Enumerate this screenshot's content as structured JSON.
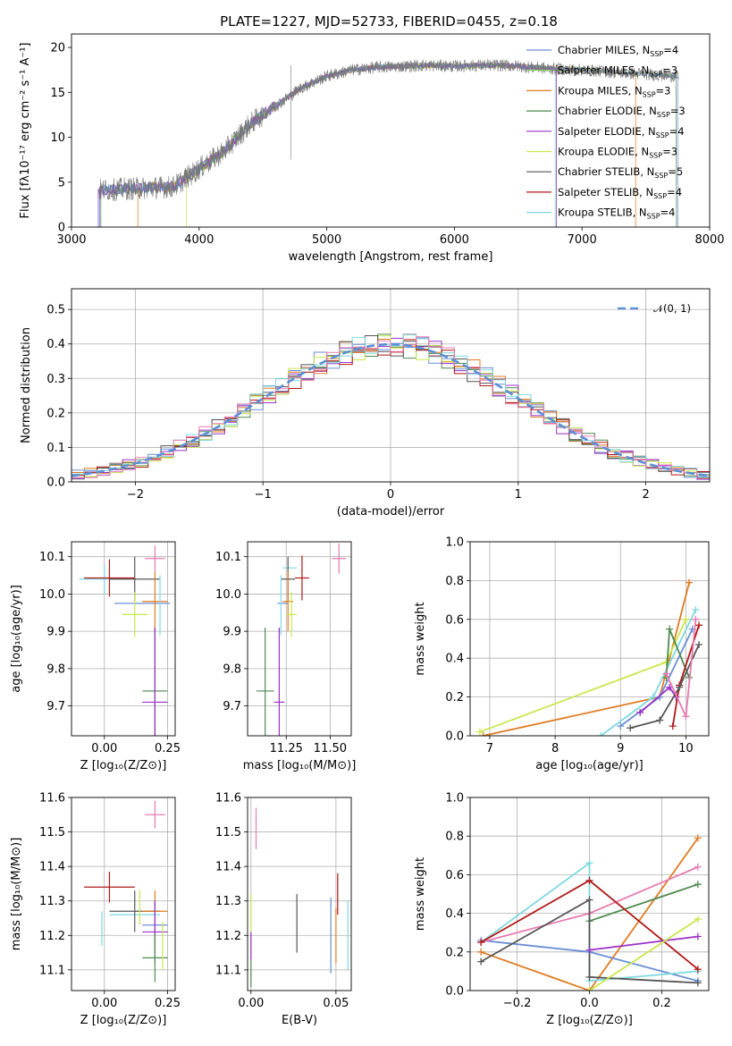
{
  "figure_title": "PLATE=1227, MJD=52733, FIBERID=0455, z=0.18",
  "colors": {
    "Chabrier MILES": "#6a8fd4",
    "Salpeter MILES": "#8fd96a",
    "Kroupa MILES": "#e07b22",
    "Chabrier ELODIE": "#4f8a4f",
    "Salpeter ELODIE": "#9b30c8",
    "Kroupa ELODIE": "#c8e84a",
    "Chabrier STELIB": "#555555",
    "Salpeter STELIB": "#b01818",
    "Kroupa STELIB": "#7fd8e0",
    "extra_pink": "#e87ab0"
  },
  "chart_data": [
    {
      "id": "spectrum",
      "type": "line",
      "xlabel": "wavelength [Angstrom, rest frame]",
      "ylabel": "Flux [fλ10⁻¹⁷ erg cm⁻² s⁻¹ A⁻¹]",
      "xlim": [
        3000,
        8000
      ],
      "ylim": [
        0,
        21.5
      ],
      "xticks": [
        "3000",
        "4000",
        "5000",
        "6000",
        "7000",
        "8000"
      ],
      "yticks": [
        "0",
        "5",
        "10",
        "15",
        "20"
      ],
      "legend": [
        {
          "label": "Chabrier MILES, N",
          "sub": "SSP",
          "tail": "=4"
        },
        {
          "label": "Salpeter MILES, N",
          "sub": "SSP",
          "tail": "=3"
        },
        {
          "label": "Kroupa MILES, N",
          "sub": "SSP",
          "tail": "=3"
        },
        {
          "label": "Chabrier ELODIE, N",
          "sub": "SSP",
          "tail": "=3"
        },
        {
          "label": "Salpeter ELODIE, N",
          "sub": "SSP",
          "tail": "=4"
        },
        {
          "label": "Kroupa ELODIE, N",
          "sub": "SSP",
          "tail": "=3"
        },
        {
          "label": "Chabrier STELIB, N",
          "sub": "SSP",
          "tail": "=5"
        },
        {
          "label": "Salpeter STELIB, N",
          "sub": "SSP",
          "tail": "=4"
        },
        {
          "label": "Kroupa STELIB, N",
          "sub": "SSP",
          "tail": "=4"
        }
      ],
      "continuum": [
        [
          3200,
          4.1
        ],
        [
          3500,
          4.3
        ],
        [
          3800,
          4.5
        ],
        [
          4000,
          6.5
        ],
        [
          4200,
          8.5
        ],
        [
          4400,
          11.5
        ],
        [
          4600,
          13.5
        ],
        [
          4800,
          15.5
        ],
        [
          5000,
          16.8
        ],
        [
          5200,
          17.5
        ],
        [
          5400,
          17.8
        ],
        [
          5600,
          17.9
        ],
        [
          5800,
          18.0
        ],
        [
          6000,
          17.9
        ],
        [
          6200,
          18.0
        ],
        [
          6400,
          18.0
        ],
        [
          6600,
          17.8
        ],
        [
          6800,
          17.6
        ],
        [
          7000,
          17.5
        ],
        [
          7200,
          17.3
        ],
        [
          7400,
          17.1
        ],
        [
          7750,
          16.8
        ]
      ],
      "model_ranges": [
        [
          3220,
          6790
        ],
        [
          3520,
          7420
        ],
        [
          3900,
          6800
        ],
        [
          3230,
          7740
        ],
        [
          3210,
          6800
        ],
        [
          3220,
          7750
        ]
      ]
    },
    {
      "id": "residual_hist",
      "type": "line",
      "xlabel": "(data-model)/error",
      "ylabel": "Normed distribution",
      "xlim": [
        -2.5,
        2.5
      ],
      "ylim": [
        0,
        0.56
      ],
      "xticks": [
        "-2",
        "-1",
        "0",
        "1",
        "2"
      ],
      "yticks": [
        "0.0",
        "0.1",
        "0.2",
        "0.3",
        "0.4",
        "0.5"
      ],
      "legend": "𝒩(0, 1)",
      "gaussian": {
        "mean": 0,
        "sigma": 1
      }
    },
    {
      "id": "age_vs_Z",
      "type": "scatter",
      "xlabel": "Z [log₁₀(Z/Z⊙)]",
      "ylabel": "age  [log₁₀(age/yr)]",
      "xlim": [
        -0.13,
        0.28
      ],
      "ylim": [
        9.62,
        10.14
      ],
      "xticks": [
        0.0,
        0.25
      ],
      "xtick_labels": [
        "0.00",
        "0.25"
      ],
      "yticks": [
        9.7,
        9.8,
        9.9,
        10.0,
        10.1
      ],
      "ytick_labels": [
        "9.7",
        "9.8",
        "9.9",
        "10.0",
        "10.1"
      ],
      "points": [
        {
          "x": 0.15,
          "y": 9.975,
          "ex": 0.11,
          "ey": 0.0,
          "c": "Chabrier MILES"
        },
        {
          "x": 0.0,
          "y": 10.04,
          "ex": 0.1,
          "ey": 0.04,
          "c": "Kroupa STELIB"
        },
        {
          "x": 0.2,
          "y": 10.095,
          "ex": 0.04,
          "ey": 0.035,
          "c": "extra_pink"
        },
        {
          "x": 0.12,
          "y": 10.04,
          "ex": 0.1,
          "ey": 0.06,
          "c": "Chabrier STELIB"
        },
        {
          "x": 0.02,
          "y": 10.043,
          "ex": 0.1,
          "ey": 0.05,
          "c": "Salpeter STELIB"
        },
        {
          "x": 0.2,
          "y": 9.98,
          "ex": 0.05,
          "ey": 0.08,
          "c": "Kroupa MILES"
        },
        {
          "x": 0.12,
          "y": 9.945,
          "ex": 0.05,
          "ey": 0.06,
          "c": "Kroupa ELODIE"
        },
        {
          "x": 0.2,
          "y": 9.74,
          "ex": 0.05,
          "ey": 0.17,
          "c": "Chabrier ELODIE"
        },
        {
          "x": 0.2,
          "y": 9.71,
          "ex": 0.05,
          "ey": 0.2,
          "c": "Salpeter ELODIE"
        },
        {
          "x": 0.22,
          "y": 9.97,
          "ex": 0.0,
          "ey": 0.08,
          "c": "Kroupa STELIB"
        }
      ]
    },
    {
      "id": "age_vs_mass",
      "type": "scatter",
      "xlabel": "mass [log₁₀(M/M⊙)]",
      "ylabel": "",
      "xlim": [
        11.03,
        11.62
      ],
      "ylim": [
        9.62,
        10.14
      ],
      "xticks": [
        11.25,
        11.5
      ],
      "xtick_labels": [
        "11.25",
        "11.50"
      ],
      "yticks": [
        9.7,
        9.8,
        9.9,
        10.0,
        10.1
      ],
      "ytick_labels": [
        "9.7",
        "9.8",
        "9.9",
        "10.0",
        "10.1"
      ],
      "points": [
        {
          "x": 11.23,
          "y": 9.975,
          "ex": 0.03,
          "ey": 0.0,
          "c": "Chabrier MILES"
        },
        {
          "x": 11.27,
          "y": 10.07,
          "ex": 0.04,
          "ey": 0.0,
          "c": "Kroupa STELIB"
        },
        {
          "x": 11.55,
          "y": 10.095,
          "ex": 0.04,
          "ey": 0.04,
          "c": "extra_pink"
        },
        {
          "x": 11.26,
          "y": 10.04,
          "ex": 0.04,
          "ey": 0.06,
          "c": "Chabrier STELIB"
        },
        {
          "x": 11.34,
          "y": 10.043,
          "ex": 0.04,
          "ey": 0.06,
          "c": "Salpeter STELIB"
        },
        {
          "x": 11.26,
          "y": 9.98,
          "ex": 0.03,
          "ey": 0.08,
          "c": "Kroupa MILES"
        },
        {
          "x": 11.28,
          "y": 9.945,
          "ex": 0.03,
          "ey": 0.06,
          "c": "Kroupa ELODIE"
        },
        {
          "x": 11.13,
          "y": 9.74,
          "ex": 0.05,
          "ey": 0.17,
          "c": "Chabrier ELODIE"
        },
        {
          "x": 11.21,
          "y": 9.71,
          "ex": 0.03,
          "ey": 0.2,
          "c": "Salpeter ELODIE"
        },
        {
          "x": 11.22,
          "y": 9.97,
          "ex": 0.0,
          "ey": 0.08,
          "c": "Kroupa STELIB"
        }
      ]
    },
    {
      "id": "weight_vs_age",
      "type": "line",
      "xlabel": "age  [log₁₀(age/yr)]",
      "ylabel": "mass weight",
      "xlim": [
        6.7,
        10.35
      ],
      "ylim": [
        0,
        1.0
      ],
      "xticks": [
        7,
        8,
        9,
        10
      ],
      "xtick_labels": [
        "7",
        "8",
        "9",
        "10"
      ],
      "yticks": [
        0,
        0.2,
        0.4,
        0.6,
        0.8,
        1.0
      ],
      "ytick_labels": [
        "0.0",
        "0.2",
        "0.4",
        "0.6",
        "0.8",
        "1.0"
      ],
      "series": [
        {
          "c": "Kroupa MILES",
          "pts": [
            [
              6.9,
              0.0
            ],
            [
              9.6,
              0.2
            ],
            [
              10.05,
              0.79
            ]
          ]
        },
        {
          "c": "Kroupa ELODIE",
          "pts": [
            [
              6.85,
              0.02
            ],
            [
              9.7,
              0.38
            ],
            [
              10.0,
              0.6
            ]
          ]
        },
        {
          "c": "Chabrier MILES",
          "pts": [
            [
              9.0,
              0.05
            ],
            [
              9.6,
              0.2
            ],
            [
              10.1,
              0.55
            ]
          ]
        },
        {
          "c": "Kroupa STELIB",
          "pts": [
            [
              8.7,
              0.0
            ],
            [
              9.5,
              0.2
            ],
            [
              10.15,
              0.65
            ]
          ]
        },
        {
          "c": "Chabrier ELODIE",
          "pts": [
            [
              9.7,
              0.3
            ],
            [
              9.75,
              0.55
            ],
            [
              10.05,
              0.3
            ]
          ]
        },
        {
          "c": "Salpeter ELODIE",
          "pts": [
            [
              9.3,
              0.12
            ],
            [
              9.75,
              0.25
            ],
            [
              9.85,
              0.2
            ]
          ]
        },
        {
          "c": "Salpeter STELIB",
          "pts": [
            [
              9.8,
              0.05
            ],
            [
              9.9,
              0.26
            ],
            [
              10.2,
              0.57
            ]
          ]
        },
        {
          "c": "Chabrier STELIB",
          "pts": [
            [
              9.15,
              0.04
            ],
            [
              9.6,
              0.08
            ],
            [
              9.9,
              0.25
            ],
            [
              10.2,
              0.47
            ]
          ]
        },
        {
          "c": "extra_pink",
          "pts": [
            [
              9.7,
              0.32
            ],
            [
              10.0,
              0.1
            ],
            [
              10.15,
              0.6
            ]
          ]
        }
      ]
    },
    {
      "id": "mass_vs_Z",
      "type": "scatter",
      "xlabel": "Z [log₁₀(Z/Z⊙)]",
      "ylabel": "mass [log₁₀(M/M⊙)]",
      "xlim": [
        -0.13,
        0.28
      ],
      "ylim": [
        11.04,
        11.6
      ],
      "xticks": [
        0.0,
        0.25
      ],
      "xtick_labels": [
        "0.00",
        "0.25"
      ],
      "yticks": [
        11.1,
        11.2,
        11.3,
        11.4,
        11.5,
        11.6
      ],
      "ytick_labels": [
        "11.1",
        "11.2",
        "11.3",
        "11.4",
        "11.5",
        "11.6"
      ],
      "points": [
        {
          "x": 0.2,
          "y": 11.55,
          "ex": 0.04,
          "ey": 0.04,
          "c": "extra_pink"
        },
        {
          "x": 0.02,
          "y": 11.34,
          "ex": 0.1,
          "ey": 0.045,
          "c": "Salpeter STELIB"
        },
        {
          "x": 0.12,
          "y": 11.26,
          "ex": 0.1,
          "ey": 0.0,
          "c": "Kroupa STELIB"
        },
        {
          "x": 0.12,
          "y": 11.27,
          "ex": 0.1,
          "ey": 0.06,
          "c": "Chabrier STELIB"
        },
        {
          "x": 0.2,
          "y": 11.27,
          "ex": 0.05,
          "ey": 0.06,
          "c": "Kroupa MILES"
        },
        {
          "x": 0.2,
          "y": 11.23,
          "ex": 0.05,
          "ey": 0.07,
          "c": "Chabrier MILES"
        },
        {
          "x": 0.2,
          "y": 11.21,
          "ex": 0.05,
          "ey": 0.09,
          "c": "Salpeter ELODIE"
        },
        {
          "x": 0.2,
          "y": 11.135,
          "ex": 0.05,
          "ey": 0.07,
          "c": "Chabrier ELODIE"
        },
        {
          "x": 0.14,
          "y": 11.28,
          "ex": 0.0,
          "ey": 0.05,
          "c": "Kroupa ELODIE"
        },
        {
          "x": -0.01,
          "y": 11.22,
          "ex": 0.0,
          "ey": 0.05,
          "c": "Kroupa STELIB"
        },
        {
          "x": 0.23,
          "y": 11.17,
          "ex": 0.0,
          "ey": 0.07,
          "c": "Kroupa ELODIE"
        }
      ]
    },
    {
      "id": "mass_vs_EBV",
      "type": "scatter",
      "xlabel": "E(B-V)",
      "ylabel": "",
      "xlim": [
        -0.002,
        0.059
      ],
      "ylim": [
        11.04,
        11.6
      ],
      "xticks": [
        0.0,
        0.05
      ],
      "xtick_labels": [
        "0.00",
        "0.05"
      ],
      "yticks": [
        11.1,
        11.2,
        11.3,
        11.4,
        11.5,
        11.6
      ],
      "ytick_labels": [
        "11.1",
        "11.2",
        "11.3",
        "11.4",
        "11.5",
        "11.6"
      ],
      "points": [
        {
          "x": 0.003,
          "y": 11.51,
          "ex": 0,
          "ey": 0.06,
          "c": "extra_pink"
        },
        {
          "x": 0.0,
          "y": 11.25,
          "ex": 0,
          "ey": 0.07,
          "c": "Kroupa ELODIE"
        },
        {
          "x": 0.0,
          "y": 11.17,
          "ex": 0,
          "ey": 0.04,
          "c": "Salpeter ELODIE"
        },
        {
          "x": 0.0,
          "y": 11.09,
          "ex": 0,
          "ey": 0.04,
          "c": "Chabrier ELODIE"
        },
        {
          "x": 0.027,
          "y": 11.235,
          "ex": 0,
          "ey": 0.085,
          "c": "Chabrier STELIB"
        },
        {
          "x": 0.047,
          "y": 11.2,
          "ex": 0,
          "ey": 0.11,
          "c": "Chabrier MILES"
        },
        {
          "x": 0.051,
          "y": 11.32,
          "ex": 0,
          "ey": 0.06,
          "c": "Salpeter STELIB"
        },
        {
          "x": 0.05,
          "y": 11.2,
          "ex": 0,
          "ey": 0.08,
          "c": "Kroupa MILES"
        },
        {
          "x": 0.057,
          "y": 11.2,
          "ex": 0,
          "ey": 0.1,
          "c": "Kroupa STELIB"
        }
      ]
    },
    {
      "id": "weight_vs_Z",
      "type": "line",
      "xlabel": "Z [log₁₀(Z/Z⊙)]",
      "ylabel": "mass weight",
      "xlim": [
        -0.33,
        0.33
      ],
      "ylim": [
        0,
        1.0
      ],
      "xticks": [
        -0.2,
        0.0,
        0.2
      ],
      "xtick_labels": [
        "−0.2",
        "0.0",
        "0.2"
      ],
      "yticks": [
        0,
        0.2,
        0.4,
        0.6,
        0.8,
        1.0
      ],
      "ytick_labels": [
        "0.0",
        "0.2",
        "0.4",
        "0.6",
        "0.8",
        "1.0"
      ],
      "series": [
        {
          "c": "Kroupa MILES",
          "pts": [
            [
              -0.3,
              0.2
            ],
            [
              0.0,
              0.0
            ],
            [
              0.3,
              0.79
            ]
          ]
        },
        {
          "c": "Chabrier MILES",
          "pts": [
            [
              -0.3,
              0.26
            ],
            [
              0.0,
              0.2
            ],
            [
              0.3,
              0.05
            ]
          ]
        },
        {
          "c": "Kroupa STELIB",
          "pts": [
            [
              -0.3,
              0.25
            ],
            [
              0.0,
              0.66
            ],
            [
              0.0,
              0.05
            ],
            [
              0.3,
              0.1
            ]
          ]
        },
        {
          "c": "Chabrier ELODIE",
          "pts": [
            [
              0.0,
              0.36
            ],
            [
              0.3,
              0.55
            ]
          ]
        },
        {
          "c": "extra_pink",
          "pts": [
            [
              -0.3,
              0.25
            ],
            [
              0.0,
              0.4
            ],
            [
              0.3,
              0.64
            ]
          ]
        },
        {
          "c": "Salpeter STELIB",
          "pts": [
            [
              -0.3,
              0.25
            ],
            [
              0.0,
              0.57
            ],
            [
              0.3,
              0.11
            ]
          ]
        },
        {
          "c": "Chabrier STELIB",
          "pts": [
            [
              -0.3,
              0.15
            ],
            [
              0.0,
              0.47
            ],
            [
              0.0,
              0.07
            ],
            [
              0.3,
              0.04
            ]
          ]
        },
        {
          "c": "Salpeter ELODIE",
          "pts": [
            [
              0.0,
              0.21
            ],
            [
              0.3,
              0.28
            ]
          ]
        },
        {
          "c": "Kroupa ELODIE",
          "pts": [
            [
              0.0,
              0.0
            ],
            [
              0.3,
              0.37
            ]
          ]
        }
      ]
    }
  ]
}
